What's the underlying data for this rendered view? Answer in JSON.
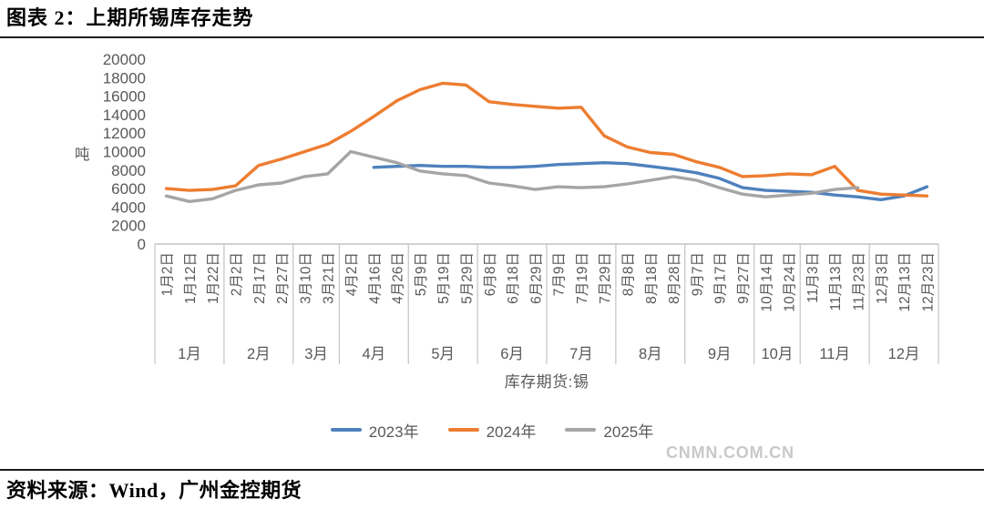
{
  "page": {
    "title": "图表 2：上期所锡库存走势",
    "footer": "资料来源：Wind，广州金控期货",
    "watermark": "CNMN.COM.CN"
  },
  "chart_data": {
    "type": "line",
    "title": "上期所锡库存走势",
    "unit_label": "吨",
    "xlabel": "库存期货:锡",
    "ylim": [
      0,
      20000
    ],
    "y_ticks": [
      0,
      2000,
      4000,
      6000,
      8000,
      10000,
      12000,
      14000,
      16000,
      18000,
      20000
    ],
    "grid": false,
    "legend_position": "bottom",
    "axis_color": "#c3c3c3",
    "label_color": "#595959",
    "categories": [
      "1月2日",
      "1月12日",
      "1月22日",
      "2月2日",
      "2月17日",
      "2月27日",
      "3月10日",
      "3月21日",
      "4月2日",
      "4月16日",
      "4月26日",
      "5月9日",
      "5月19日",
      "5月29日",
      "6月8日",
      "6月18日",
      "6月29日",
      "7月9日",
      "7月19日",
      "7月29日",
      "8月8日",
      "8月18日",
      "8月28日",
      "9月7日",
      "9月17日",
      "9月27日",
      "10月14日",
      "10月24日",
      "11月3日",
      "11月13日",
      "11月23日",
      "12月3日",
      "12月13日",
      "12月23日"
    ],
    "month_groups": [
      {
        "label": "1月",
        "tick_count": 3
      },
      {
        "label": "2月",
        "tick_count": 3
      },
      {
        "label": "3月",
        "tick_count": 2
      },
      {
        "label": "4月",
        "tick_count": 3
      },
      {
        "label": "5月",
        "tick_count": 3
      },
      {
        "label": "6月",
        "tick_count": 3
      },
      {
        "label": "7月",
        "tick_count": 3
      },
      {
        "label": "8月",
        "tick_count": 3
      },
      {
        "label": "9月",
        "tick_count": 3
      },
      {
        "label": "10月",
        "tick_count": 2
      },
      {
        "label": "11月",
        "tick_count": 3
      },
      {
        "label": "12月",
        "tick_count": 3
      }
    ],
    "series": [
      {
        "name": "2023年",
        "color": "#4E81BD",
        "values": [
          null,
          null,
          null,
          null,
          null,
          null,
          null,
          null,
          null,
          8300,
          8400,
          8500,
          8400,
          8400,
          8300,
          8300,
          8400,
          8600,
          8700,
          8800,
          8700,
          8400,
          8100,
          7700,
          7100,
          6100,
          5800,
          5700,
          5600,
          5300,
          5100,
          4800,
          5200,
          6200
        ]
      },
      {
        "name": "2024年",
        "color": "#ED7D31",
        "values": [
          6000,
          5800,
          5900,
          6300,
          8500,
          9200,
          10000,
          10800,
          12200,
          13800,
          15500,
          16700,
          17400,
          17200,
          15400,
          15100,
          14900,
          14700,
          14800,
          11700,
          10500,
          9900,
          9700,
          8900,
          8300,
          7300,
          7400,
          7600,
          7500,
          8400,
          5800,
          5400,
          5300,
          5200
        ]
      },
      {
        "name": "2025年",
        "color": "#A5A5A5",
        "values": [
          5200,
          4600,
          4900,
          5800,
          6400,
          6600,
          7300,
          7600,
          10000,
          9400,
          8800,
          7900,
          7600,
          7400,
          6600,
          6300,
          5900,
          6200,
          6100,
          6200,
          6500,
          6900,
          7300,
          6900,
          6100,
          5400,
          5100,
          5300,
          5500,
          5900,
          6100,
          null,
          null,
          null
        ]
      }
    ]
  }
}
